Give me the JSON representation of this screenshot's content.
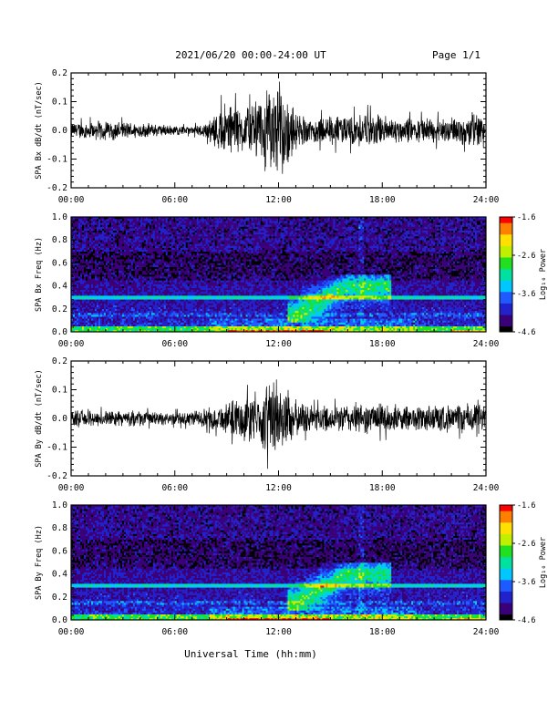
{
  "header": {
    "date_range": "2021/06/20  00:00-24:00 UT",
    "page": "Page 1/1"
  },
  "footer": {
    "xlabel": "Universal Time (hh:mm)"
  },
  "colors": {
    "trace": "#000000",
    "colormap": [
      "#000000",
      "#3a007a",
      "#2222cc",
      "#1e5aff",
      "#00c8ff",
      "#00e0a0",
      "#20e020",
      "#c0f000",
      "#ffe000",
      "#ff8000",
      "#ff0000"
    ]
  },
  "chart_data": [
    {
      "type": "line",
      "ylabel": "SPA Bx dB/dt (nT/sec)",
      "xlabel": "",
      "xlim": [
        0,
        24
      ],
      "x_ticks": [
        "00:00",
        "06:00",
        "12:00",
        "18:00",
        "24:00"
      ],
      "ylim": [
        -0.2,
        0.2
      ],
      "y_ticks": [
        "-0.2",
        "-0.1",
        "0.0",
        "0.1",
        "0.2"
      ],
      "series": [
        {
          "hours": [
            0,
            1,
            2,
            3,
            4,
            5,
            6,
            7,
            8,
            8.5,
            9,
            9.5,
            10,
            10.5,
            11,
            11.5,
            12,
            12.5,
            13,
            13.5,
            14,
            15,
            16,
            17,
            18,
            19,
            20,
            21,
            22,
            23,
            23.5,
            24
          ],
          "envelope": [
            0.03,
            0.035,
            0.04,
            0.035,
            0.03,
            0.025,
            0.02,
            0.015,
            0.04,
            0.08,
            0.12,
            0.1,
            0.09,
            0.1,
            0.15,
            0.16,
            0.2,
            0.14,
            0.07,
            0.06,
            0.05,
            0.06,
            0.06,
            0.07,
            0.06,
            0.05,
            0.05,
            0.05,
            0.05,
            0.06,
            0.09,
            0.05
          ]
        }
      ]
    },
    {
      "type": "heatmap",
      "ylabel": "SPA Bx Freq (Hz)",
      "xlim": [
        0,
        24
      ],
      "x_ticks": [
        "00:00",
        "06:00",
        "12:00",
        "18:00",
        "24:00"
      ],
      "ylim": [
        0,
        1
      ],
      "y_ticks": [
        "0.0",
        "0.2",
        "0.4",
        "0.6",
        "0.8",
        "1.0"
      ],
      "colorbar": {
        "label": "Log₁₀ Power",
        "min": -4.6,
        "max": -1.6,
        "ticks": [
          "-1.6",
          "-2.6",
          "-3.6",
          "-4.6"
        ]
      },
      "features": [
        {
          "name": "background",
          "log_power": -4.2
        },
        {
          "name": "low-frequency band 0-0.05 Hz",
          "log_power": -2.8
        },
        {
          "name": "persistent line 0.3 Hz",
          "log_power": -3.5
        },
        {
          "name": "afternoon Pc1 emission 13:00-18:00, 0.1-0.5 Hz",
          "log_power": -3.2
        }
      ]
    },
    {
      "type": "line",
      "ylabel": "SPA By dB/dt (nT/sec)",
      "xlabel": "",
      "xlim": [
        0,
        24
      ],
      "x_ticks": [
        "00:00",
        "06:00",
        "12:00",
        "18:00",
        "24:00"
      ],
      "ylim": [
        -0.2,
        0.2
      ],
      "y_ticks": [
        "-0.2",
        "-0.1",
        "0.0",
        "0.1",
        "0.2"
      ],
      "series": [
        {
          "hours": [
            0,
            1,
            2,
            3,
            4,
            5,
            6,
            7,
            8,
            9,
            10,
            10.5,
            11,
            11.5,
            12,
            12.5,
            13,
            13.5,
            14,
            15,
            16,
            17,
            18,
            19,
            20,
            21,
            22,
            23,
            23.5,
            24
          ],
          "envelope": [
            0.03,
            0.035,
            0.03,
            0.03,
            0.03,
            0.025,
            0.025,
            0.03,
            0.04,
            0.06,
            0.09,
            0.09,
            0.12,
            0.14,
            0.17,
            0.12,
            0.07,
            0.06,
            0.05,
            0.05,
            0.06,
            0.06,
            0.06,
            0.05,
            0.05,
            0.06,
            0.05,
            0.06,
            0.08,
            0.04
          ]
        }
      ]
    },
    {
      "type": "heatmap",
      "ylabel": "SPA By Freq (Hz)",
      "xlim": [
        0,
        24
      ],
      "x_ticks": [
        "00:00",
        "06:00",
        "12:00",
        "18:00",
        "24:00"
      ],
      "ylim": [
        0,
        1
      ],
      "y_ticks": [
        "0.0",
        "0.2",
        "0.4",
        "0.6",
        "0.8",
        "1.0"
      ],
      "colorbar": {
        "label": "Log₁₀ Power",
        "min": -4.6,
        "max": -1.6,
        "ticks": [
          "-1.6",
          "-2.6",
          "-3.6",
          "-4.6"
        ]
      },
      "features": [
        {
          "name": "background",
          "log_power": -4.2
        },
        {
          "name": "low-frequency band 0-0.05 Hz",
          "log_power": -2.8
        },
        {
          "name": "persistent line 0.3 Hz",
          "log_power": -3.5
        },
        {
          "name": "afternoon Pc1 emission 13:00-18:00, 0.1-0.5 Hz",
          "log_power": -3.2
        }
      ]
    }
  ]
}
